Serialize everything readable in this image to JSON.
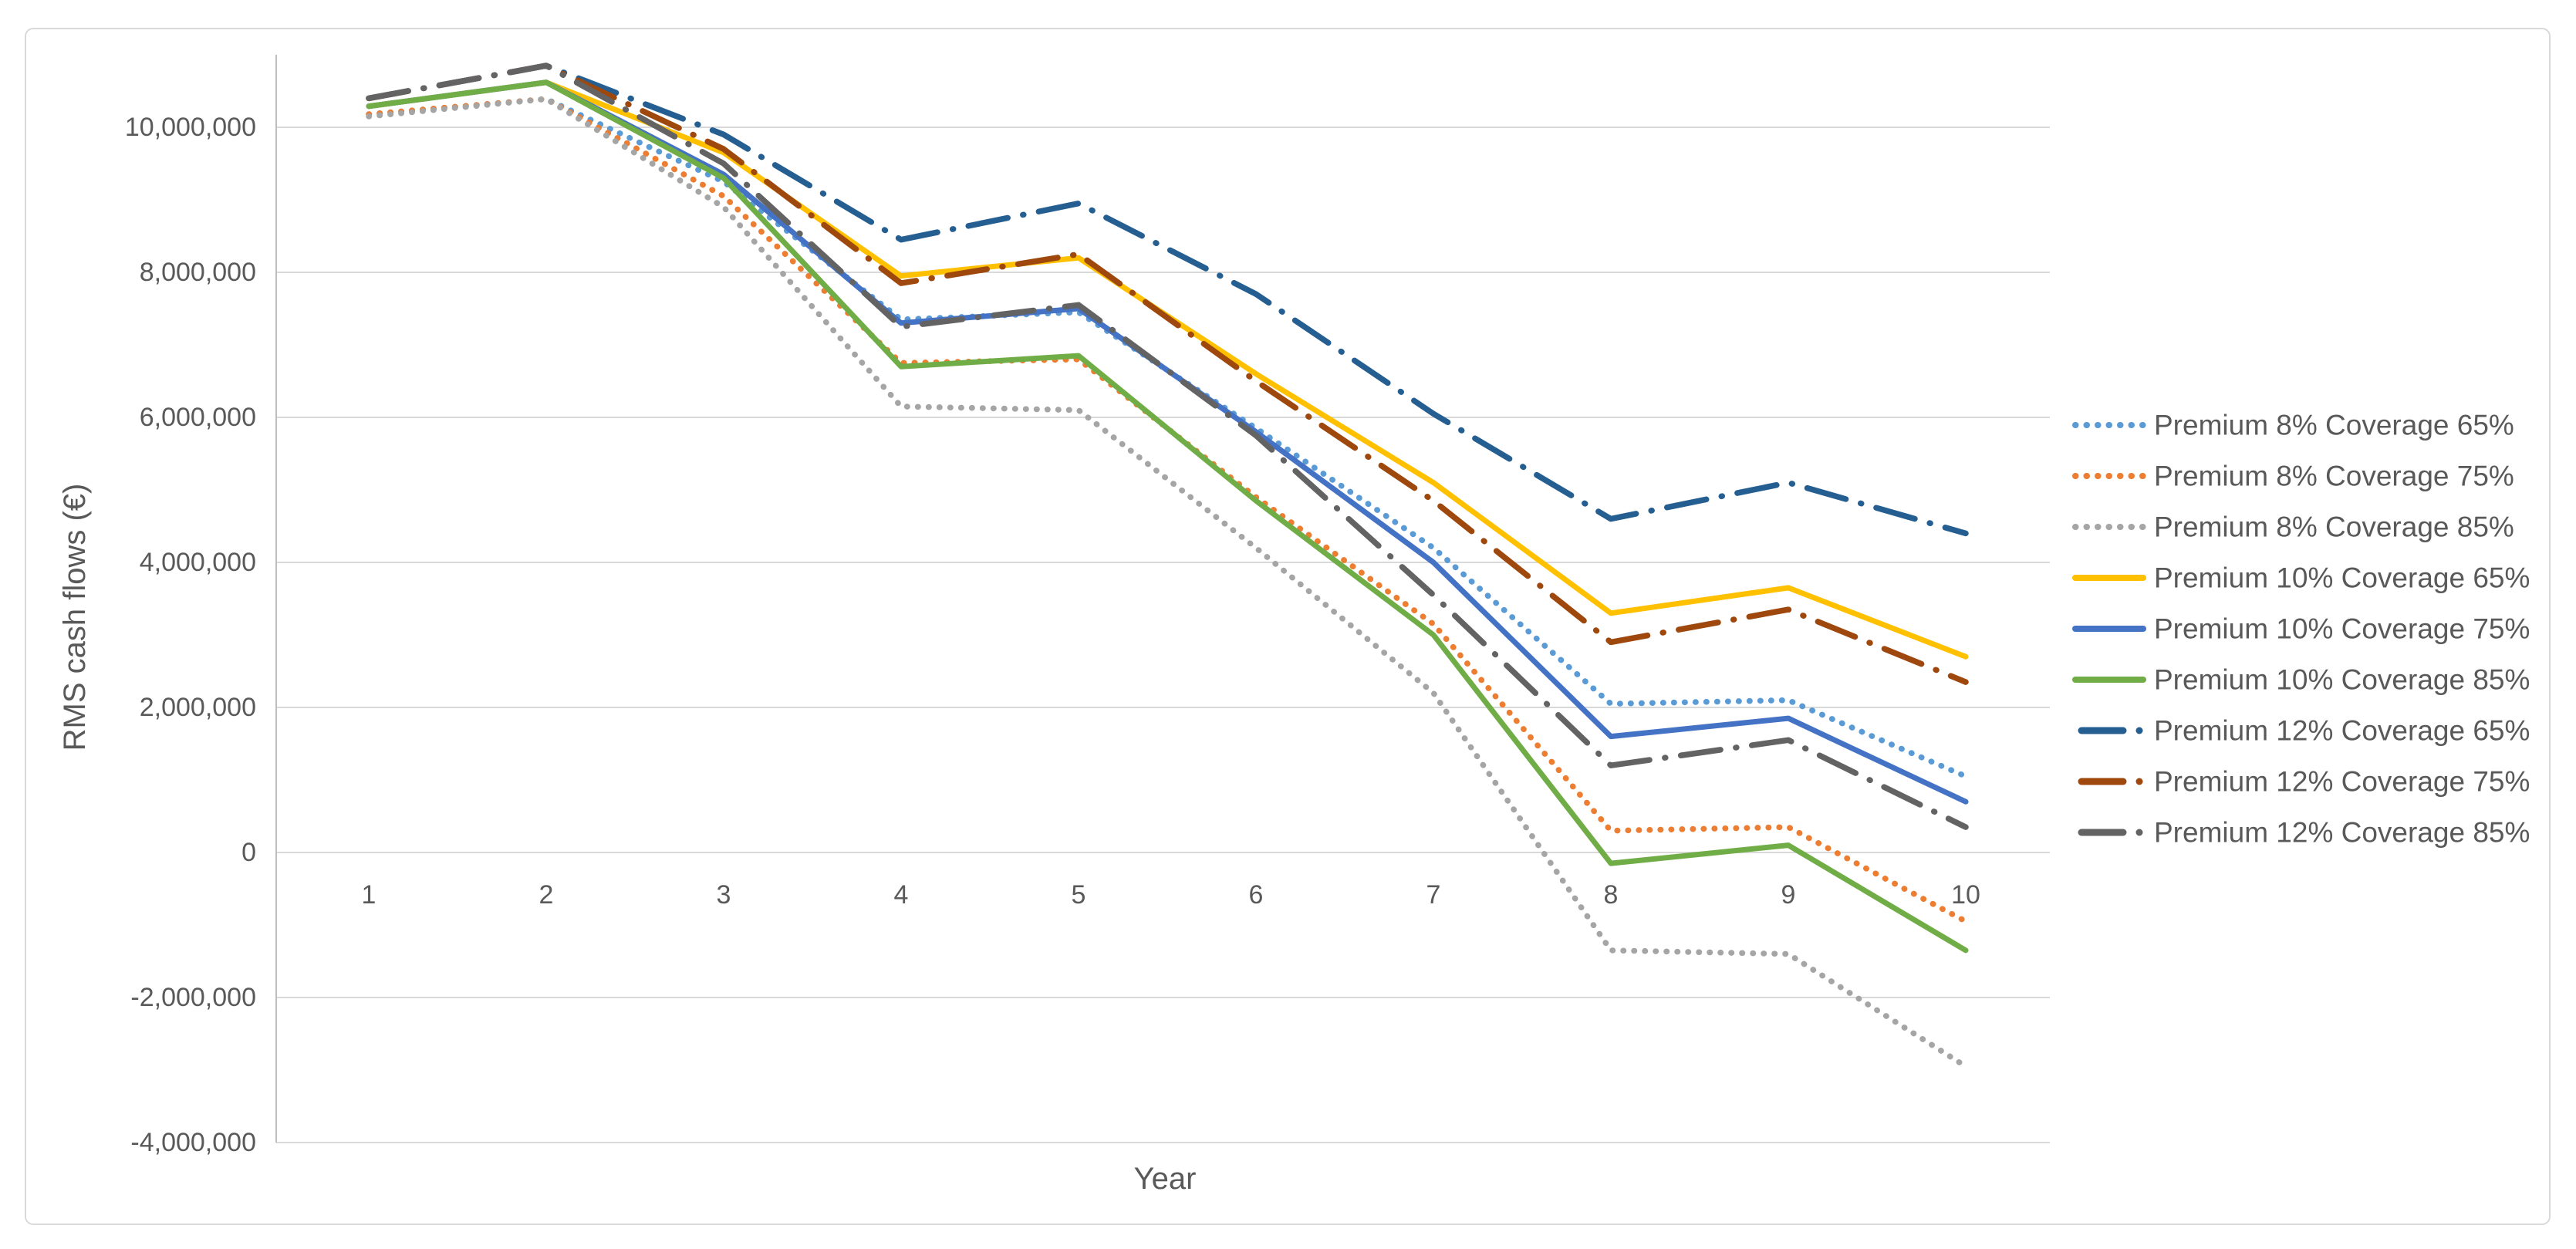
{
  "chart_data": {
    "type": "line",
    "title": "",
    "xlabel": "Year",
    "ylabel": "RMS cash flows (€)",
    "grid": true,
    "legend_position": "right",
    "colors": {
      "text": "#595959",
      "grid": "#D9D9D9",
      "axis_line": "#BFBFBF",
      "chart_border": "#D9D9D9",
      "background": "#FFFFFF"
    },
    "x_axis": {
      "values": [
        1,
        2,
        3,
        4,
        5,
        6,
        7,
        8,
        9,
        10
      ],
      "tick_labels": [
        "1",
        "2",
        "3",
        "4",
        "5",
        "6",
        "7",
        "8",
        "9",
        "10"
      ]
    },
    "y_axis": {
      "ylim": [
        -4000000,
        11000000
      ],
      "tick_values": [
        10000000,
        8000000,
        6000000,
        4000000,
        2000000,
        0,
        -2000000,
        -4000000
      ],
      "tick_labels": [
        "10,000,000",
        "8,000,000",
        "6,000,000",
        "4,000,000",
        "2,000,000",
        "0",
        "-2,000,000",
        "-4,000,000"
      ]
    },
    "series": [
      {
        "name": "Premium 8% Coverage 65%",
        "color": "#5B9BD5",
        "line_style": "dotted",
        "values": [
          10180000,
          10390000,
          9250000,
          7350000,
          7450000,
          5850000,
          4200000,
          2050000,
          2100000,
          1050000
        ]
      },
      {
        "name": "Premium 8% Coverage 75%",
        "color": "#ED7D31",
        "line_style": "dotted",
        "values": [
          10180000,
          10390000,
          9050000,
          6750000,
          6800000,
          4900000,
          3150000,
          300000,
          350000,
          -950000
        ]
      },
      {
        "name": "Premium 8% Coverage 85%",
        "color": "#A5A5A5",
        "line_style": "dotted",
        "values": [
          10150000,
          10390000,
          8900000,
          6150000,
          6100000,
          4200000,
          2200000,
          -1350000,
          -1400000,
          -2950000
        ]
      },
      {
        "name": "Premium 10% Coverage 65%",
        "color": "#FFC000",
        "line_style": "solid",
        "values": [
          10290000,
          10620000,
          9650000,
          7950000,
          8200000,
          6600000,
          5100000,
          3300000,
          3650000,
          2700000
        ]
      },
      {
        "name": "Premium 10% Coverage 75%",
        "color": "#4472C4",
        "line_style": "solid",
        "values": [
          10290000,
          10620000,
          9350000,
          7300000,
          7500000,
          5800000,
          4000000,
          1600000,
          1850000,
          700000
        ]
      },
      {
        "name": "Premium 10% Coverage 85%",
        "color": "#70AD47",
        "line_style": "solid",
        "values": [
          10290000,
          10620000,
          9300000,
          6700000,
          6850000,
          4850000,
          3000000,
          -150000,
          100000,
          -1350000
        ]
      },
      {
        "name": "Premium 12% Coverage 65%",
        "color": "#255E91",
        "line_style": "dash-dot",
        "values": [
          10400000,
          10850000,
          9900000,
          8450000,
          8950000,
          7700000,
          6050000,
          4600000,
          5100000,
          4400000
        ]
      },
      {
        "name": "Premium 12% Coverage 75%",
        "color": "#9E480E",
        "line_style": "dash-dot",
        "values": [
          10400000,
          10850000,
          9700000,
          7850000,
          8250000,
          6500000,
          4850000,
          2900000,
          3350000,
          2350000
        ]
      },
      {
        "name": "Premium 12% Coverage 85%",
        "color": "#636363",
        "line_style": "dash-dot",
        "values": [
          10400000,
          10850000,
          9500000,
          7250000,
          7550000,
          5750000,
          3550000,
          1200000,
          1550000,
          350000
        ]
      }
    ]
  }
}
